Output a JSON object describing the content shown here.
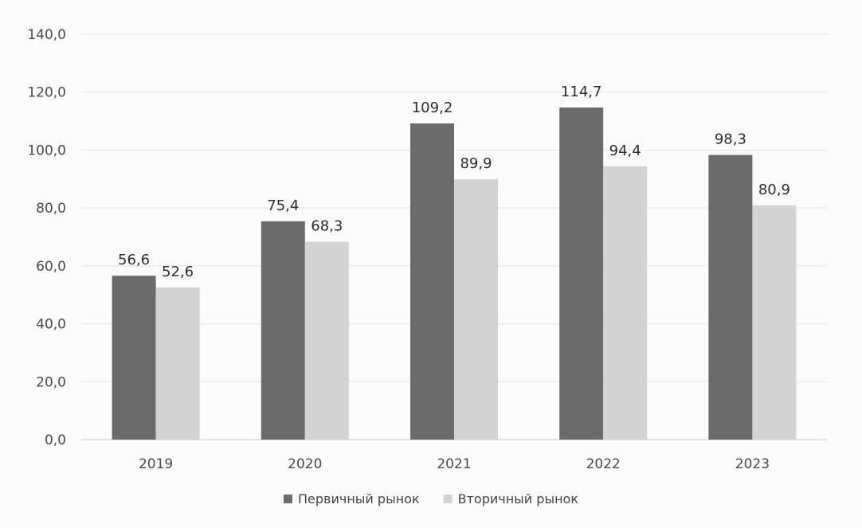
{
  "chart_data": {
    "type": "bar",
    "categories": [
      "2019",
      "2020",
      "2021",
      "2022",
      "2023"
    ],
    "series": [
      {
        "name": "Первичный рынок",
        "values": [
          56.6,
          75.4,
          109.2,
          114.7,
          98.3
        ],
        "value_labels": [
          "56,6",
          "75,4",
          "109,2",
          "114,7",
          "98,3"
        ],
        "color": "#6b6b6b"
      },
      {
        "name": "Вторичный рынок",
        "values": [
          52.6,
          68.3,
          89.9,
          94.4,
          80.9
        ],
        "value_labels": [
          "52,6",
          "68,3",
          "89,9",
          "94,4",
          "80,9"
        ],
        "color": "#d3d3d3"
      }
    ],
    "y_ticks": [
      0,
      20,
      40,
      60,
      80,
      100,
      120,
      140
    ],
    "y_tick_labels": [
      "0,0",
      "20,0",
      "40,0",
      "60,0",
      "80,0",
      "100,0",
      "120,0",
      "140,0"
    ],
    "ylim": [
      0,
      140
    ],
    "grid": true,
    "legend_position": "bottom-center"
  }
}
